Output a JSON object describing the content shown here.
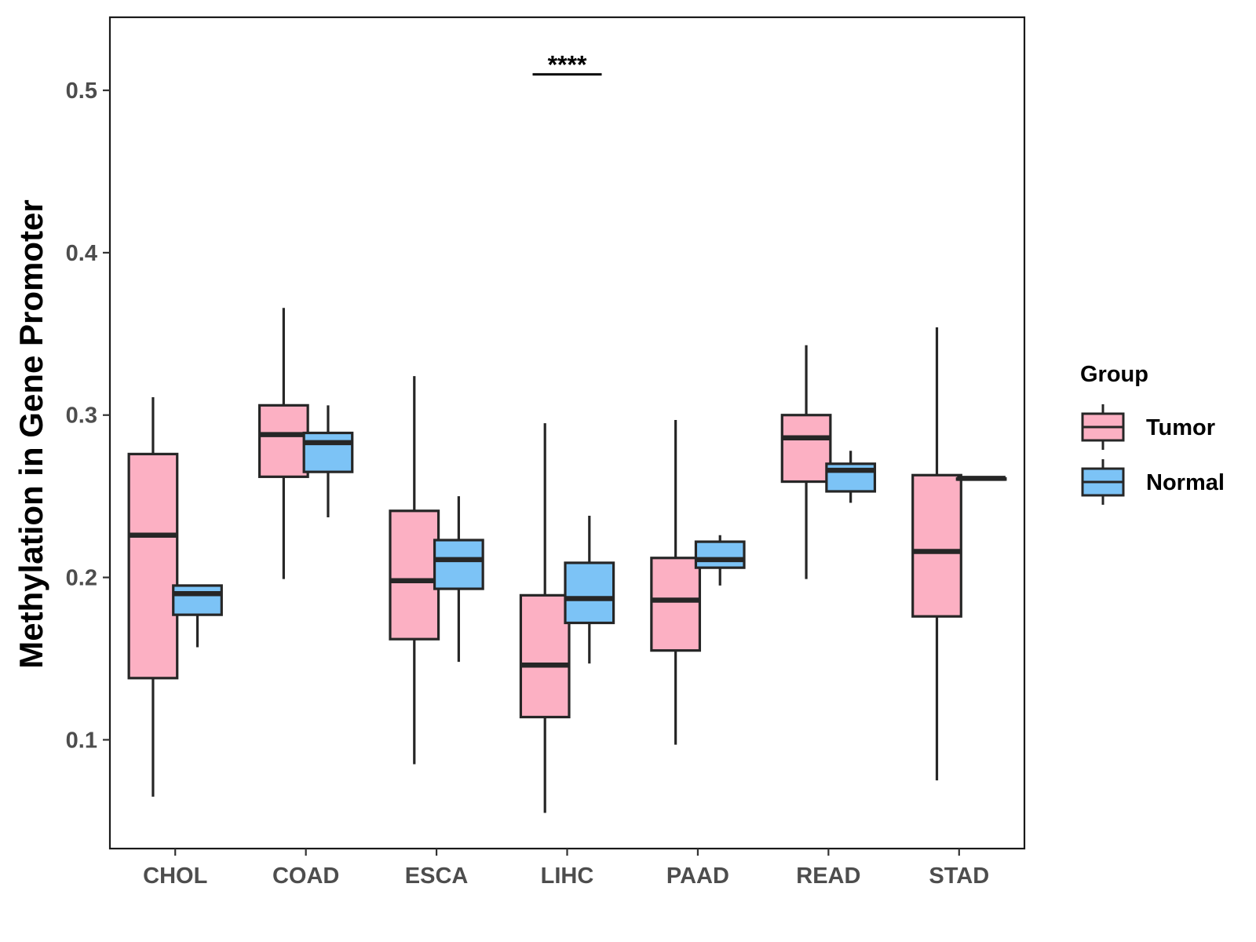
{
  "chart_data": {
    "type": "boxplot",
    "title": "",
    "xlabel": "",
    "ylabel": "Methylation in Gene Promoter",
    "ylim": [
      0.033,
      0.545
    ],
    "yticks": [
      "0.1",
      "0.2",
      "0.3",
      "0.4",
      "0.5"
    ],
    "grid": false,
    "legend_position": "right",
    "legend_title": "Group",
    "categories": [
      "CHOL",
      "COAD",
      "ESCA",
      "LIHC",
      "PAAD",
      "READ",
      "STAD"
    ],
    "series": [
      {
        "name": "Tumor",
        "color": "#fcb0c3",
        "boxes": [
          {
            "min": 0.065,
            "q1": 0.138,
            "median": 0.226,
            "q3": 0.276,
            "max": 0.311
          },
          {
            "min": 0.199,
            "q1": 0.262,
            "median": 0.288,
            "q3": 0.306,
            "max": 0.366
          },
          {
            "min": 0.085,
            "q1": 0.162,
            "median": 0.198,
            "q3": 0.241,
            "max": 0.324
          },
          {
            "min": 0.055,
            "q1": 0.114,
            "median": 0.146,
            "q3": 0.189,
            "max": 0.295
          },
          {
            "min": 0.097,
            "q1": 0.155,
            "median": 0.186,
            "q3": 0.212,
            "max": 0.297
          },
          {
            "min": 0.199,
            "q1": 0.259,
            "median": 0.286,
            "q3": 0.3,
            "max": 0.343
          },
          {
            "min": 0.075,
            "q1": 0.176,
            "median": 0.216,
            "q3": 0.263,
            "max": 0.354
          }
        ]
      },
      {
        "name": "Normal",
        "color": "#7cc3f6",
        "boxes": [
          {
            "min": 0.157,
            "q1": 0.177,
            "median": 0.19,
            "q3": 0.195,
            "max": 0.195
          },
          {
            "min": 0.237,
            "q1": 0.265,
            "median": 0.283,
            "q3": 0.289,
            "max": 0.306
          },
          {
            "min": 0.148,
            "q1": 0.193,
            "median": 0.211,
            "q3": 0.223,
            "max": 0.25
          },
          {
            "min": 0.147,
            "q1": 0.172,
            "median": 0.187,
            "q3": 0.209,
            "max": 0.238
          },
          {
            "min": 0.195,
            "q1": 0.206,
            "median": 0.211,
            "q3": 0.222,
            "max": 0.226
          },
          {
            "min": 0.246,
            "q1": 0.253,
            "median": 0.266,
            "q3": 0.27,
            "max": 0.278
          },
          {
            "min": 0.261,
            "q1": 0.261,
            "median": 0.261,
            "q3": 0.261,
            "max": 0.261
          }
        ]
      }
    ],
    "annotations": [
      {
        "text": "****",
        "category": "LIHC",
        "y": 0.52
      }
    ]
  },
  "colors": {
    "tumor": "#fcb0c3",
    "normal": "#7cc3f6",
    "stroke": "#262626",
    "axis_text": "#4d4d4d"
  }
}
